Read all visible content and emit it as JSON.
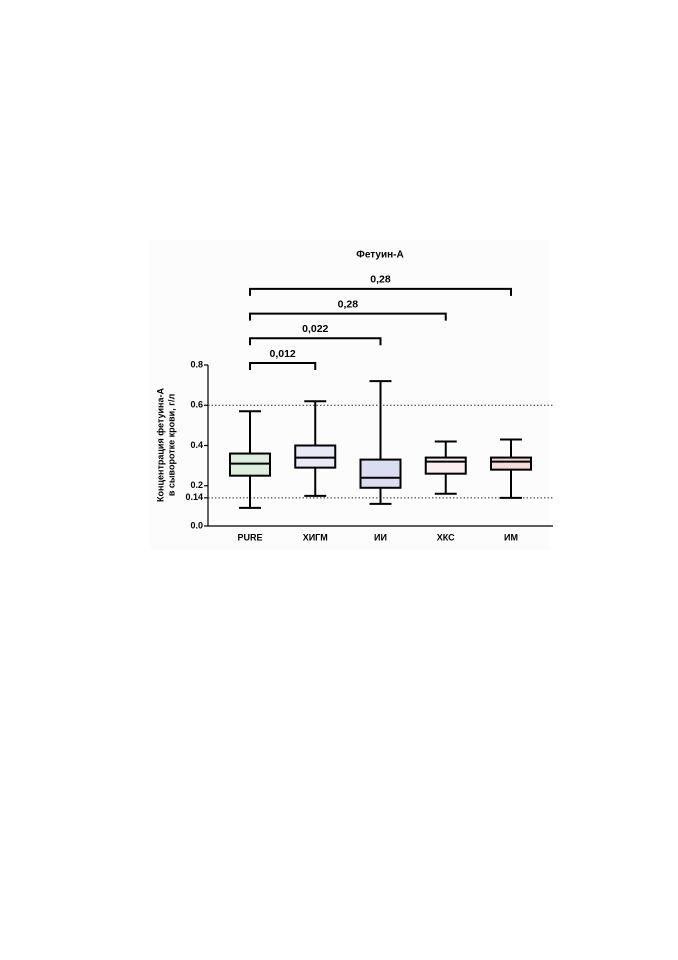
{
  "chart_data": {
    "type": "box",
    "title": "Фетуин-А",
    "y_label": [
      "Концентрация фетуина-А",
      "в сыворотке крови, г/л"
    ],
    "categories": [
      "PURE",
      "ХИГМ",
      "ИИ",
      "ХКС",
      "ИМ"
    ],
    "boxes": [
      {
        "color": "#2ca02c",
        "min": 0.09,
        "q1": 0.25,
        "median": 0.31,
        "q3": 0.36,
        "max": 0.57
      },
      {
        "color": "#7b7fe0",
        "min": 0.15,
        "q1": 0.29,
        "median": 0.34,
        "q3": 0.4,
        "max": 0.62
      },
      {
        "color": "#1a2fb5",
        "min": 0.11,
        "q1": 0.19,
        "median": 0.24,
        "q3": 0.33,
        "max": 0.72
      },
      {
        "color": "#f4a0a8",
        "min": 0.16,
        "q1": 0.26,
        "median": 0.32,
        "q3": 0.34,
        "max": 0.42
      },
      {
        "color": "#d42020",
        "min": 0.14,
        "q1": 0.28,
        "median": 0.32,
        "q3": 0.34,
        "max": 0.43
      }
    ],
    "comparisons": [
      {
        "groups": [
          "PURE",
          "ХИГМ"
        ],
        "label": "0,012"
      },
      {
        "groups": [
          "PURE",
          "ИИ"
        ],
        "label": "0,022"
      },
      {
        "groups": [
          "PURE",
          "ХКС"
        ],
        "label": "0,28"
      },
      {
        "groups": [
          "PURE",
          "ИМ"
        ],
        "label": "0,28"
      }
    ],
    "reference_lines": [
      0.6,
      0.14
    ],
    "ylim": [
      0,
      0.8
    ],
    "yticks": [
      {
        "value": 0,
        "label": "0.0"
      },
      0.14,
      0.2,
      0.4,
      0.6,
      0.8
    ]
  }
}
